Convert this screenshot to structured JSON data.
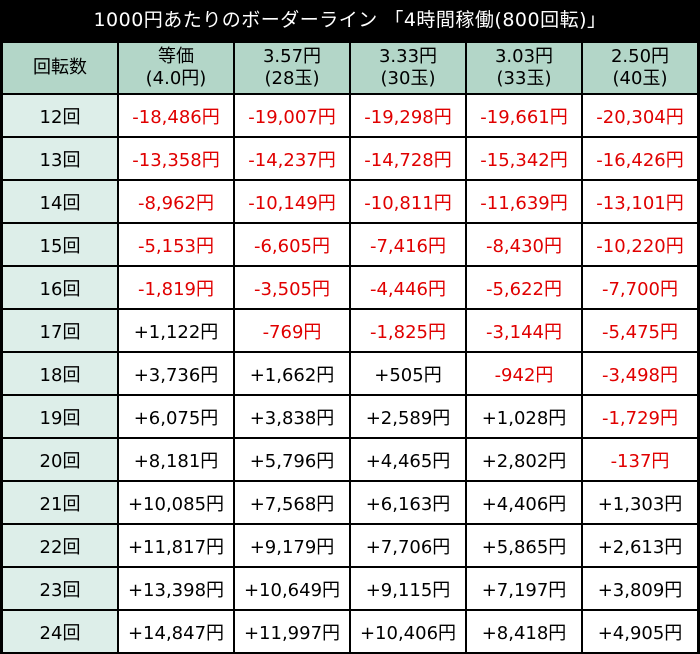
{
  "title": "1000円あたりのボーダーライン 「4時間稼働(800回転)」",
  "colors": {
    "background": "#000000",
    "header_bg": "#b3d6c8",
    "row_label_bg": "#ddeee9",
    "cell_bg": "#ffffff",
    "negative_text": "#e00000",
    "positive_text": "#000000"
  },
  "header": {
    "row_label": "回転数",
    "columns": [
      {
        "line1": "等価",
        "line2": "(4.0円)"
      },
      {
        "line1": "3.57円",
        "line2": "(28玉)"
      },
      {
        "line1": "3.33円",
        "line2": "(30玉)"
      },
      {
        "line1": "3.03円",
        "line2": "(33玉)"
      },
      {
        "line1": "2.50円",
        "line2": "(40玉)"
      }
    ]
  },
  "rows": [
    {
      "label": "12回",
      "cells": [
        {
          "text": "-18,486円",
          "neg": true
        },
        {
          "text": "-19,007円",
          "neg": true
        },
        {
          "text": "-19,298円",
          "neg": true
        },
        {
          "text": "-19,661円",
          "neg": true
        },
        {
          "text": "-20,304円",
          "neg": true
        }
      ]
    },
    {
      "label": "13回",
      "cells": [
        {
          "text": "-13,358円",
          "neg": true
        },
        {
          "text": "-14,237円",
          "neg": true
        },
        {
          "text": "-14,728円",
          "neg": true
        },
        {
          "text": "-15,342円",
          "neg": true
        },
        {
          "text": "-16,426円",
          "neg": true
        }
      ]
    },
    {
      "label": "14回",
      "cells": [
        {
          "text": "-8,962円",
          "neg": true
        },
        {
          "text": "-10,149円",
          "neg": true
        },
        {
          "text": "-10,811円",
          "neg": true
        },
        {
          "text": "-11,639円",
          "neg": true
        },
        {
          "text": "-13,101円",
          "neg": true
        }
      ]
    },
    {
      "label": "15回",
      "cells": [
        {
          "text": "-5,153円",
          "neg": true
        },
        {
          "text": "-6,605円",
          "neg": true
        },
        {
          "text": "-7,416円",
          "neg": true
        },
        {
          "text": "-8,430円",
          "neg": true
        },
        {
          "text": "-10,220円",
          "neg": true
        }
      ]
    },
    {
      "label": "16回",
      "cells": [
        {
          "text": "-1,819円",
          "neg": true
        },
        {
          "text": "-3,505円",
          "neg": true
        },
        {
          "text": "-4,446円",
          "neg": true
        },
        {
          "text": "-5,622円",
          "neg": true
        },
        {
          "text": "-7,700円",
          "neg": true
        }
      ]
    },
    {
      "label": "17回",
      "cells": [
        {
          "text": "+1,122円",
          "neg": false
        },
        {
          "text": "-769円",
          "neg": true
        },
        {
          "text": "-1,825円",
          "neg": true
        },
        {
          "text": "-3,144円",
          "neg": true
        },
        {
          "text": "-5,475円",
          "neg": true
        }
      ]
    },
    {
      "label": "18回",
      "cells": [
        {
          "text": "+3,736円",
          "neg": false
        },
        {
          "text": "+1,662円",
          "neg": false
        },
        {
          "text": "+505円",
          "neg": false
        },
        {
          "text": "-942円",
          "neg": true
        },
        {
          "text": "-3,498円",
          "neg": true
        }
      ]
    },
    {
      "label": "19回",
      "cells": [
        {
          "text": "+6,075円",
          "neg": false
        },
        {
          "text": "+3,838円",
          "neg": false
        },
        {
          "text": "+2,589円",
          "neg": false
        },
        {
          "text": "+1,028円",
          "neg": false
        },
        {
          "text": "-1,729円",
          "neg": true
        }
      ]
    },
    {
      "label": "20回",
      "cells": [
        {
          "text": "+8,181円",
          "neg": false
        },
        {
          "text": "+5,796円",
          "neg": false
        },
        {
          "text": "+4,465円",
          "neg": false
        },
        {
          "text": "+2,802円",
          "neg": false
        },
        {
          "text": "-137円",
          "neg": true
        }
      ]
    },
    {
      "label": "21回",
      "cells": [
        {
          "text": "+10,085円",
          "neg": false
        },
        {
          "text": "+7,568円",
          "neg": false
        },
        {
          "text": "+6,163円",
          "neg": false
        },
        {
          "text": "+4,406円",
          "neg": false
        },
        {
          "text": "+1,303円",
          "neg": false
        }
      ]
    },
    {
      "label": "22回",
      "cells": [
        {
          "text": "+11,817円",
          "neg": false
        },
        {
          "text": "+9,179円",
          "neg": false
        },
        {
          "text": "+7,706円",
          "neg": false
        },
        {
          "text": "+5,865円",
          "neg": false
        },
        {
          "text": "+2,613円",
          "neg": false
        }
      ]
    },
    {
      "label": "23回",
      "cells": [
        {
          "text": "+13,398円",
          "neg": false
        },
        {
          "text": "+10,649円",
          "neg": false
        },
        {
          "text": "+9,115円",
          "neg": false
        },
        {
          "text": "+7,197円",
          "neg": false
        },
        {
          "text": "+3,809円",
          "neg": false
        }
      ]
    },
    {
      "label": "24回",
      "cells": [
        {
          "text": "+14,847円",
          "neg": false
        },
        {
          "text": "+11,997円",
          "neg": false
        },
        {
          "text": "+10,406円",
          "neg": false
        },
        {
          "text": "+8,418円",
          "neg": false
        },
        {
          "text": "+4,905円",
          "neg": false
        }
      ]
    }
  ]
}
